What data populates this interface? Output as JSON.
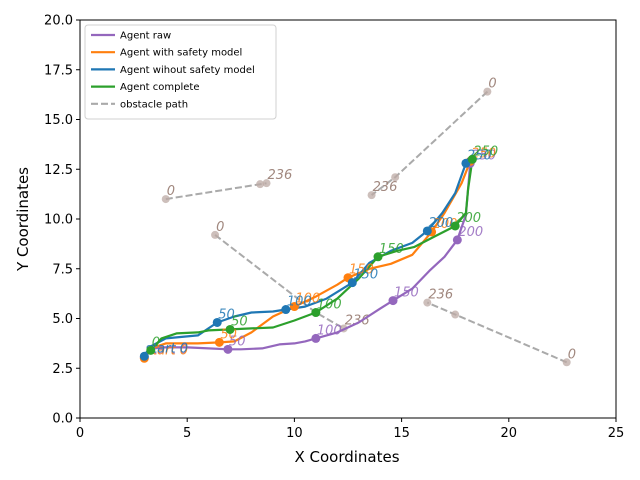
{
  "chart_data": {
    "type": "line",
    "xlabel": "X Coordinates",
    "ylabel": "Y Coordinates",
    "xlim": [
      0,
      25
    ],
    "ylim": [
      0,
      20
    ],
    "xticks": [
      0,
      5,
      10,
      15,
      20,
      25
    ],
    "yticks": [
      0.0,
      2.5,
      5.0,
      7.5,
      10.0,
      12.5,
      15.0,
      17.5,
      20.0
    ],
    "grid": false,
    "legend_position": "top-left",
    "series": [
      {
        "name": "Agent raw",
        "color": "#9467bd",
        "x": [
          3.0,
          3.2,
          3.8,
          5.0,
          6.0,
          6.9,
          7.5,
          8.5,
          9.3,
          10.0,
          10.5,
          11.0,
          12.0,
          13.0,
          14.0,
          14.6,
          15.5,
          16.3,
          17.0,
          17.6,
          18.0,
          18.2
        ],
        "y": [
          3.05,
          3.45,
          3.55,
          3.55,
          3.5,
          3.45,
          3.45,
          3.5,
          3.7,
          3.75,
          3.85,
          4.0,
          4.3,
          4.8,
          5.5,
          5.9,
          6.5,
          7.4,
          8.1,
          8.95,
          10.2,
          12.8
        ],
        "markers": [
          {
            "x": 3.0,
            "y": 3.05,
            "label": "start 0"
          },
          {
            "x": 6.9,
            "y": 3.45,
            "label": "50"
          },
          {
            "x": 11.0,
            "y": 4.0,
            "label": "100"
          },
          {
            "x": 14.6,
            "y": 5.9,
            "label": "150"
          },
          {
            "x": 17.6,
            "y": 8.95,
            "label": "200"
          },
          {
            "x": 18.2,
            "y": 12.8,
            "label": "250"
          }
        ]
      },
      {
        "name": "Agent with safety model",
        "color": "#ff7f0e",
        "x": [
          3.0,
          3.3,
          4.0,
          5.5,
          6.5,
          7.2,
          8.0,
          9.0,
          10.0,
          11.0,
          12.0,
          12.5,
          13.5,
          14.5,
          15.5,
          16.4,
          17.0,
          17.8,
          18.2
        ],
        "y": [
          3.0,
          3.5,
          3.75,
          3.75,
          3.8,
          3.85,
          4.3,
          5.1,
          5.6,
          6.1,
          6.7,
          7.05,
          7.5,
          7.75,
          8.2,
          9.35,
          10.3,
          11.8,
          12.9
        ],
        "markers": [
          {
            "x": 3.0,
            "y": 3.0,
            "label": "start 0"
          },
          {
            "x": 6.5,
            "y": 3.8,
            "label": "50"
          },
          {
            "x": 10.0,
            "y": 5.6,
            "label": "100"
          },
          {
            "x": 12.5,
            "y": 7.05,
            "label": "150"
          },
          {
            "x": 16.4,
            "y": 9.35,
            "label": "200"
          },
          {
            "x": 18.2,
            "y": 12.9,
            "label": "250"
          }
        ]
      },
      {
        "name": "Agent wihout safety model",
        "color": "#1f77b4",
        "x": [
          3.0,
          3.3,
          4.0,
          5.5,
          6.4,
          7.2,
          8.0,
          9.0,
          9.6,
          10.5,
          11.5,
          12.7,
          13.5,
          14.5,
          15.5,
          16.2,
          16.9,
          17.5,
          18.0
        ],
        "y": [
          3.1,
          3.6,
          4.0,
          4.15,
          4.8,
          5.1,
          5.3,
          5.35,
          5.45,
          5.6,
          6.0,
          6.8,
          7.8,
          8.4,
          8.8,
          9.4,
          10.3,
          11.3,
          12.8
        ],
        "markers": [
          {
            "x": 3.0,
            "y": 3.1,
            "label": "start 0"
          },
          {
            "x": 6.4,
            "y": 4.8,
            "label": "50"
          },
          {
            "x": 9.6,
            "y": 5.45,
            "label": "100"
          },
          {
            "x": 12.7,
            "y": 6.8,
            "label": "150"
          },
          {
            "x": 16.2,
            "y": 9.4,
            "label": "200"
          },
          {
            "x": 18.0,
            "y": 12.8,
            "label": "250"
          }
        ]
      },
      {
        "name": "Agent complete",
        "color": "#2ca02c",
        "x": [
          3.3,
          3.8,
          4.5,
          5.5,
          6.0,
          7.0,
          8.0,
          9.0,
          10.0,
          11.0,
          12.0,
          13.0,
          13.9,
          14.8,
          15.6,
          16.5,
          17.5,
          18.0,
          18.1,
          18.3
        ],
        "y": [
          3.4,
          4.0,
          4.25,
          4.3,
          4.4,
          4.45,
          4.5,
          4.55,
          4.9,
          5.3,
          6.0,
          7.0,
          8.1,
          8.4,
          8.6,
          9.1,
          9.65,
          10.3,
          11.5,
          13.0
        ],
        "markers": [
          {
            "x": 3.3,
            "y": 3.4,
            "label": "0"
          },
          {
            "x": 7.0,
            "y": 4.45,
            "label": "50"
          },
          {
            "x": 11.0,
            "y": 5.3,
            "label": "100"
          },
          {
            "x": 13.9,
            "y": 8.1,
            "label": "150"
          },
          {
            "x": 17.5,
            "y": 9.65,
            "label": "200"
          },
          {
            "x": 18.3,
            "y": 13.0,
            "label": "250"
          }
        ]
      },
      {
        "name": "obstacle path",
        "color": "#aaaaaa",
        "dashed": true,
        "segments": [
          {
            "x": [
              4.0,
              8.4,
              8.7
            ],
            "y": [
              11.0,
              11.75,
              11.8
            ],
            "start_label": "0",
            "end_label": "236"
          },
          {
            "x": [
              19.0,
              14.7,
              13.6
            ],
            "y": [
              16.4,
              12.1,
              11.2
            ],
            "start_label": "0",
            "end_label": "236"
          },
          {
            "x": [
              6.3,
              11.0,
              12.3
            ],
            "y": [
              9.2,
              5.3,
              4.5
            ],
            "start_label": "0",
            "end_label": "236"
          },
          {
            "x": [
              22.7,
              17.5,
              16.2
            ],
            "y": [
              2.8,
              5.2,
              5.8
            ],
            "start_label": "0",
            "end_label": "236"
          }
        ]
      }
    ]
  }
}
